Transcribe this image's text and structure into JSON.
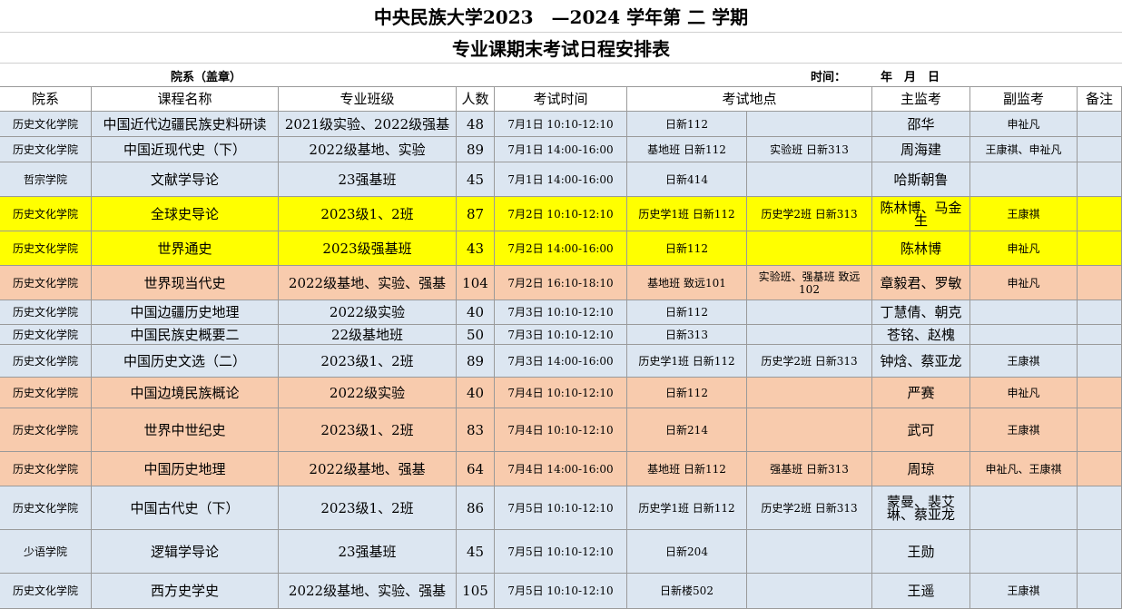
{
  "header": {
    "title": "中央民族大学2023　—2024 学年第 二 学期",
    "subtitle": "专业课期末考试日程安排表",
    "seal": "院系（盖章）",
    "time_label": "时间：",
    "date_label": "年　月　日"
  },
  "table": {
    "columns": [
      "院系",
      "课程名称",
      "专业班级",
      "人数",
      "考试时间",
      "考试地点",
      "主监考",
      "副监考",
      "备注"
    ],
    "row_colors": [
      "#dce6f1",
      "#dce6f1",
      "#dce6f1",
      "#ffff00",
      "#ffff00",
      "#f8cbad",
      "#dce6f1",
      "#dce6f1",
      "#dce6f1",
      "#f8cbad",
      "#f8cbad",
      "#f8cbad",
      "#dce6f1",
      "#dce6f1",
      "#dce6f1"
    ],
    "rows": [
      [
        "历史文化学院",
        "中国近代边疆民族史料研读",
        "2021级实验、2022级强基",
        48,
        "7月1日 10:10-12:10",
        "日新112",
        null,
        "邵华",
        "申祉凡",
        null
      ],
      [
        "历史文化学院",
        "中国近现代史（下）",
        "2022级基地、实验",
        89,
        "7月1日 14:00-16:00",
        "基地班 日新112",
        "实验班 日新313",
        "周海建",
        "王康祺、申祉凡",
        null
      ],
      [
        "哲宗学院",
        "文献学导论",
        "23强基班",
        45,
        "7月1日 14:00-16:00",
        "日新414",
        null,
        "哈斯朝鲁",
        null,
        null
      ],
      [
        "历史文化学院",
        "全球史导论",
        "2023级1、2班",
        87,
        "7月2日 10:10-12:10",
        "历史学1班 日新112",
        "历史学2班 日新313",
        "陈林博、马金生",
        "王康祺",
        null
      ],
      [
        "历史文化学院",
        "世界通史",
        "2023级强基班",
        43,
        "7月2日 14:00-16:00",
        "日新112",
        null,
        "陈林博",
        "申祉凡",
        null
      ],
      [
        "历史文化学院",
        "世界现当代史",
        "2022级基地、实验、强基",
        104,
        "7月2日 16:10-18:10",
        "基地班 致远101",
        "实验班、强基班 致远102",
        "章毅君、罗敏",
        "申祉凡",
        null
      ],
      [
        "历史文化学院",
        "中国边疆历史地理",
        "2022级实验",
        40,
        "7月3日 10:10-12:10",
        "日新112",
        null,
        "丁慧倩、朝克",
        null,
        null
      ],
      [
        "历史文化学院",
        "中国民族史概要二",
        "22级基地班",
        50,
        "7月3日 10:10-12:10",
        "日新313",
        null,
        "苍铭、赵槐",
        null,
        null
      ],
      [
        "历史文化学院",
        "中国历史文选（二）",
        "2023级1、2班",
        89,
        "7月3日 14:00-16:00",
        "历史学1班 日新112",
        "历史学2班 日新313",
        "钟焓、蔡亚龙",
        "王康祺",
        null
      ],
      [
        "历史文化学院",
        "中国边境民族概论",
        "2022级实验",
        40,
        "7月4日 10:10-12:10",
        "日新112",
        null,
        "严赛",
        "申祉凡",
        null
      ],
      [
        "历史文化学院",
        "世界中世纪史",
        "2023级1、2班",
        83,
        "7月4日 10:10-12:10",
        "日新214",
        null,
        "武可",
        "王康祺",
        null
      ],
      [
        "历史文化学院",
        "中国历史地理",
        "2022级基地、强基",
        64,
        "7月4日 14:00-16:00",
        "基地班 日新112",
        "强基班 日新313",
        "周琼",
        "申祉凡、王康祺",
        null
      ],
      [
        "历史文化学院",
        "中国古代史（下）",
        "2023级1、2班",
        86,
        "7月5日 10:10-12:10",
        "历史学1班 日新112",
        "历史学2班 日新313",
        "蒙曼、裴艾琳、蔡亚龙",
        null,
        null
      ],
      [
        "少语学院",
        "逻辑学导论",
        "23强基班",
        45,
        "7月5日 10:10-12:10",
        "日新204",
        null,
        "王勋",
        null,
        null
      ],
      [
        "历史文化学院",
        "西方史学史",
        "2022级基地、实验、强基",
        105,
        "7月5日 10:10-12:10",
        "日新楼502",
        null,
        "王遥",
        "王康祺",
        null
      ]
    ]
  }
}
